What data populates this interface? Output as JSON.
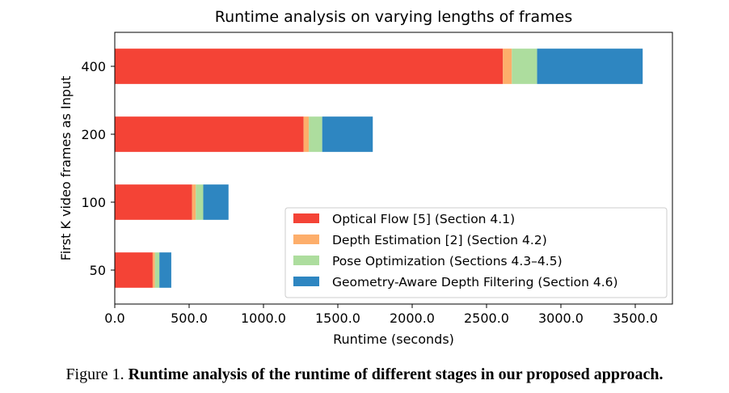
{
  "chart_data": {
    "type": "bar",
    "orientation": "horizontal",
    "stacked": true,
    "title": "Runtime analysis on varying lengths of frames",
    "xlabel": "Runtime (seconds)",
    "ylabel": "First K video frames as Input",
    "xlim": [
      0,
      3750
    ],
    "xticks": [
      "0.0",
      "500.0",
      "1000.0",
      "1500.0",
      "2000.0",
      "2500.0",
      "3000.0",
      "3500.0"
    ],
    "xtick_values": [
      0,
      500,
      1000,
      1500,
      2000,
      2500,
      3000,
      3500
    ],
    "categories": [
      "50",
      "100",
      "200",
      "400"
    ],
    "series": [
      {
        "name": "Optical Flow [5] (Section 4.1)",
        "color": "#f44336",
        "values": [
          255,
          520,
          1270,
          2610
        ]
      },
      {
        "name": "Depth Estimation [2] (Section 4.2)",
        "color": "#fdae6b",
        "values": [
          15,
          25,
          35,
          60
        ]
      },
      {
        "name": "Pose Optimization (Sections 4.3–4.5)",
        "color": "#addd9e",
        "values": [
          30,
          50,
          90,
          170
        ]
      },
      {
        "name": "Geometry-Aware Depth Filtering (Section 4.6)",
        "color": "#2e86c1",
        "values": [
          80,
          170,
          340,
          710
        ]
      }
    ],
    "legend_position": "lower-right",
    "grid": false
  },
  "caption": {
    "prefix": "Figure 1. ",
    "bold_text": "Runtime analysis of the runtime of different stages in our proposed approach."
  }
}
